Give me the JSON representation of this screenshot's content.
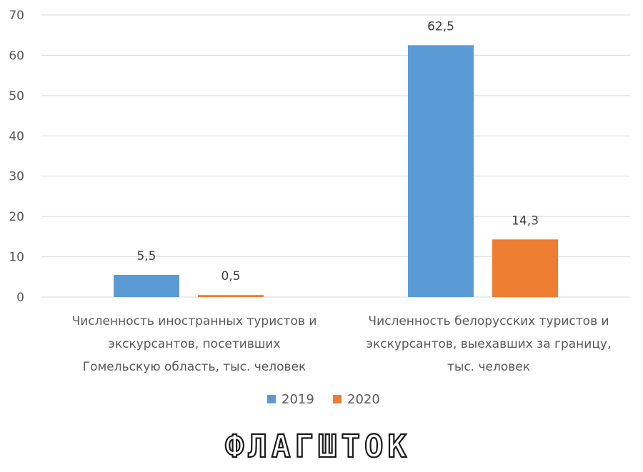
{
  "chart_data": {
    "type": "bar",
    "categories": [
      [
        "Численность иностранных туристов и",
        "экскурсантов, посетивших",
        "Гомельскую область, тыс. человек"
      ],
      [
        "Численность белорусских туристов и",
        "экскурсантов, выехавших за границу,",
        "тыс. человек"
      ]
    ],
    "series": [
      {
        "name": "2019",
        "color": "#5b9bd5",
        "values": [
          5.5,
          62.5
        ],
        "labels": [
          "5,5",
          "62,5"
        ]
      },
      {
        "name": "2020",
        "color": "#ed7d31",
        "values": [
          0.5,
          14.3
        ],
        "labels": [
          "0,5",
          "14,3"
        ]
      }
    ],
    "y_ticks": [
      0,
      10,
      20,
      30,
      40,
      50,
      60,
      70
    ],
    "ylim": [
      0,
      70
    ],
    "grid": true,
    "legend_position": "bottom"
  },
  "watermark": {
    "text": "ФЛАГШТОК"
  }
}
